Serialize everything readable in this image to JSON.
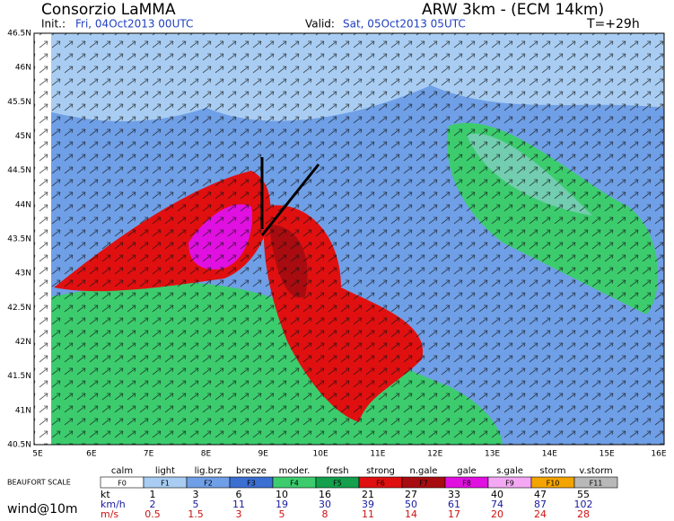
{
  "header": {
    "left_title": "Consorzio LaMMA",
    "right_title": "ARW 3km - (ECM 14km)",
    "init_label": "Init.:",
    "init_value": "Fri, 04Oct2013 00UTC",
    "valid_label": "Valid:",
    "valid_value": "Sat, 05Oct2013 05UTC",
    "forecast_step": "T=+29h"
  },
  "axes": {
    "x_labels": [
      "5E",
      "6E",
      "7E",
      "8E",
      "9E",
      "10E",
      "11E",
      "12E",
      "13E",
      "14E",
      "15E",
      "16E"
    ],
    "y_labels": [
      "46.5N",
      "46N",
      "45.5N",
      "45N",
      "44.5N",
      "44N",
      "43.5N",
      "43N",
      "42.5N",
      "42N",
      "41.5N",
      "41N",
      "40.5N"
    ]
  },
  "legend": {
    "scale_title": "BEAUFORT SCALE",
    "variable": "wind@10m",
    "classes": [
      {
        "name": "calm",
        "code": "F0",
        "color": "#ffffff"
      },
      {
        "name": "light",
        "code": "F1",
        "color": "#a9cdf2"
      },
      {
        "name": "lig.brz",
        "code": "F2",
        "color": "#6f9fe6"
      },
      {
        "name": "breeze",
        "code": "F3",
        "color": "#3c6fd2"
      },
      {
        "name": "moder.",
        "code": "F4",
        "color": "#3ccc6e"
      },
      {
        "name": "fresh",
        "code": "F5",
        "color": "#14a04c"
      },
      {
        "name": "strong",
        "code": "F6",
        "color": "#e01010"
      },
      {
        "name": "n.gale",
        "code": "F7",
        "color": "#a80c10"
      },
      {
        "name": "gale",
        "code": "F8",
        "color": "#e010e0"
      },
      {
        "name": "s.gale",
        "code": "F9",
        "color": "#f4a8f4"
      },
      {
        "name": "storm",
        "code": "F10",
        "color": "#f4a400"
      },
      {
        "name": "v.storm",
        "code": "F11",
        "color": "#b8b8b8"
      }
    ],
    "units": [
      {
        "unit": "kt",
        "color": "#000000",
        "values": [
          "1",
          "3",
          "6",
          "10",
          "16",
          "21",
          "27",
          "33",
          "40",
          "47",
          "55"
        ]
      },
      {
        "unit": "km/h",
        "color": "#1a1aa0",
        "values": [
          "2",
          "5",
          "11",
          "19",
          "30",
          "39",
          "50",
          "61",
          "74",
          "87",
          "102"
        ]
      },
      {
        "unit": "m/s",
        "color": "#d01010",
        "values": [
          "0.5",
          "1.5",
          "3",
          "5",
          "8",
          "11",
          "14",
          "17",
          "20",
          "24",
          "28"
        ]
      }
    ]
  }
}
